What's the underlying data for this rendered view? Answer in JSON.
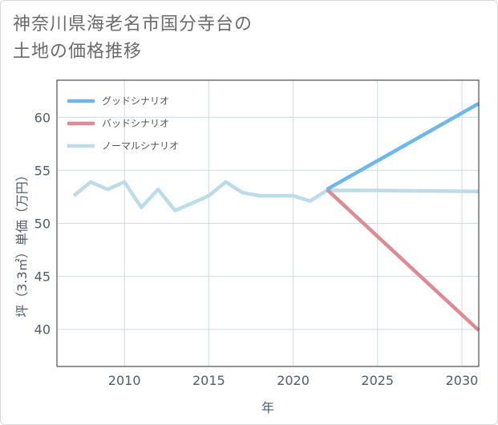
{
  "title_lines": [
    "神奈川県海老名市国分寺台の",
    "土地の価格推移"
  ],
  "colors": {
    "good": "#6cb8ec",
    "bad": "#dd8a92",
    "normal": "#bcdcea",
    "grid": "#cfdbe6",
    "plot_border": "#2b2b2b",
    "tick_text": "#4e5d6c"
  },
  "chart_data": {
    "type": "line",
    "title": "神奈川県海老名市国分寺台の土地の価格推移",
    "xlabel": "年",
    "ylabel": "坪（3.3㎡）単価（万円）",
    "xlim": [
      2006,
      2031
    ],
    "ylim": [
      36.5,
      63.5
    ],
    "x_ticks": [
      2010,
      2015,
      2020,
      2025,
      2030
    ],
    "y_ticks": [
      40,
      45,
      50,
      55,
      60
    ],
    "x_tick_labels": [
      "2010",
      "2015",
      "2020",
      "2025",
      "2030"
    ],
    "y_tick_labels": [
      "40",
      "45",
      "50",
      "55",
      "60"
    ],
    "grid": true,
    "legend_position": "top-left",
    "series": [
      {
        "key": "good",
        "name": "グッドシナリオ",
        "x": [
          2022,
          2031
        ],
        "values": [
          53.2,
          61.3
        ]
      },
      {
        "key": "bad",
        "name": "バッドシナリオ",
        "x": [
          2022,
          2031
        ],
        "values": [
          53.2,
          39.9
        ]
      },
      {
        "key": "normal",
        "name": "ノーマルシナリオ",
        "x": [
          2007,
          2008,
          2009,
          2010,
          2011,
          2012,
          2013,
          2014,
          2015,
          2016,
          2017,
          2018,
          2019,
          2020,
          2021,
          2022,
          2025,
          2031
        ],
        "values": [
          52.6,
          53.9,
          53.2,
          53.9,
          51.5,
          53.2,
          51.2,
          51.9,
          52.6,
          53.9,
          52.9,
          52.6,
          52.6,
          52.6,
          52.1,
          53.1,
          53.1,
          53.0
        ]
      }
    ]
  }
}
